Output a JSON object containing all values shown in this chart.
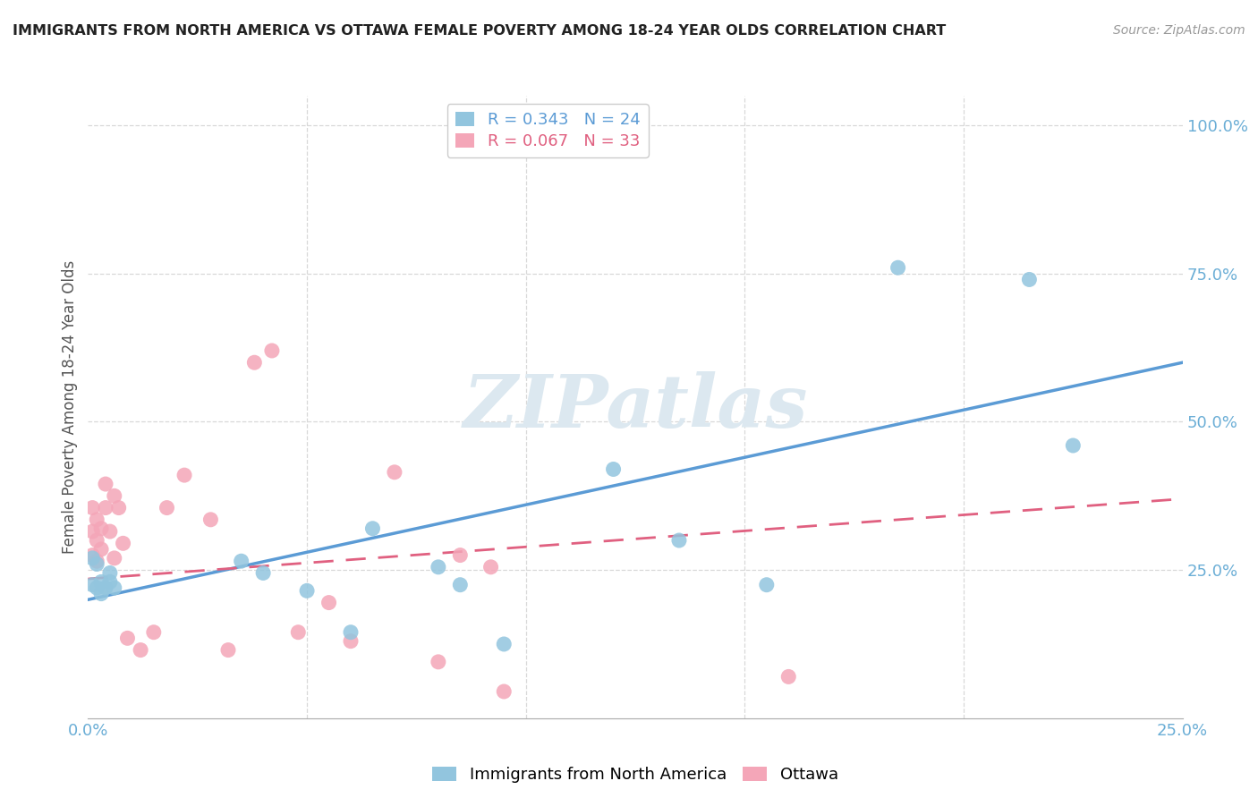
{
  "title": "IMMIGRANTS FROM NORTH AMERICA VS OTTAWA FEMALE POVERTY AMONG 18-24 YEAR OLDS CORRELATION CHART",
  "source": "Source: ZipAtlas.com",
  "ylabel": "Female Poverty Among 18-24 Year Olds",
  "right_yticks": [
    "100.0%",
    "75.0%",
    "50.0%",
    "25.0%"
  ],
  "right_ytick_vals": [
    1.0,
    0.75,
    0.5,
    0.25
  ],
  "legend1_label": "R = 0.343   N = 24",
  "legend2_label": "R = 0.067   N = 33",
  "blue_color": "#92c5de",
  "pink_color": "#f4a6b8",
  "blue_line_color": "#5b9bd5",
  "pink_line_color": "#e06080",
  "blue_scatter_x": [
    0.001,
    0.001,
    0.002,
    0.002,
    0.003,
    0.003,
    0.004,
    0.005,
    0.005,
    0.006,
    0.035,
    0.04,
    0.05,
    0.06,
    0.065,
    0.08,
    0.085,
    0.095,
    0.12,
    0.135,
    0.155,
    0.185,
    0.215,
    0.225
  ],
  "blue_scatter_y": [
    0.27,
    0.225,
    0.26,
    0.22,
    0.23,
    0.21,
    0.22,
    0.245,
    0.23,
    0.22,
    0.265,
    0.245,
    0.215,
    0.145,
    0.32,
    0.255,
    0.225,
    0.125,
    0.42,
    0.3,
    0.225,
    0.76,
    0.74,
    0.46
  ],
  "pink_scatter_x": [
    0.001,
    0.001,
    0.001,
    0.002,
    0.002,
    0.002,
    0.003,
    0.003,
    0.004,
    0.004,
    0.005,
    0.006,
    0.006,
    0.007,
    0.008,
    0.009,
    0.012,
    0.015,
    0.018,
    0.022,
    0.028,
    0.032,
    0.038,
    0.042,
    0.048,
    0.055,
    0.06,
    0.07,
    0.08,
    0.085,
    0.092,
    0.095,
    0.16
  ],
  "pink_scatter_y": [
    0.275,
    0.315,
    0.355,
    0.265,
    0.3,
    0.335,
    0.285,
    0.32,
    0.355,
    0.395,
    0.315,
    0.375,
    0.27,
    0.355,
    0.295,
    0.135,
    0.115,
    0.145,
    0.355,
    0.41,
    0.335,
    0.115,
    0.6,
    0.62,
    0.145,
    0.195,
    0.13,
    0.415,
    0.095,
    0.275,
    0.255,
    0.045,
    0.07
  ],
  "blue_line_x": [
    0.0,
    0.25
  ],
  "blue_line_y": [
    0.2,
    0.6
  ],
  "pink_line_x": [
    0.0,
    0.25
  ],
  "pink_line_y": [
    0.235,
    0.37
  ],
  "xlim": [
    0.0,
    0.25
  ],
  "ylim": [
    0.0,
    1.05
  ],
  "watermark": "ZIPatlas",
  "background_color": "#ffffff",
  "grid_color": "#d8d8d8",
  "watermark_color": "#dce8f0"
}
